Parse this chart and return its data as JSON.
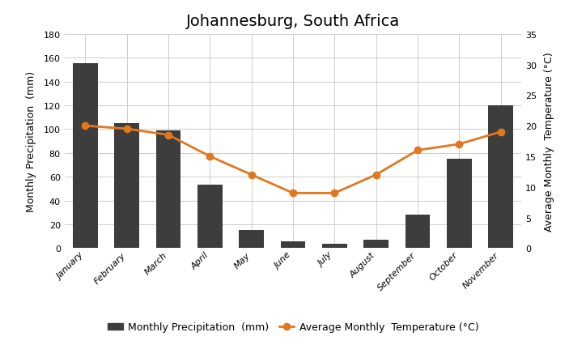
{
  "title": "Johannesburg, South Africa",
  "months": [
    "January",
    "February",
    "March",
    "April",
    "May",
    "June",
    "July",
    "August",
    "September",
    "October",
    "November"
  ],
  "precipitation": [
    155,
    105,
    99,
    53,
    15,
    6,
    4,
    7,
    28,
    75,
    120
  ],
  "temperature": [
    20,
    19.5,
    18.5,
    15,
    12,
    9,
    9,
    12,
    16,
    17,
    19
  ],
  "bar_color": "#3d3d3d",
  "line_color": "#e07820",
  "marker_color": "#e07820",
  "background_color": "#ffffff",
  "grid_color": "#cccccc",
  "ylabel_left": "Monthly Precipitation  (mm)",
  "ylabel_right": "Average Monthly  Temperature (°C)",
  "ylim_left": [
    0,
    180
  ],
  "ylim_right": [
    0,
    35
  ],
  "yticks_left": [
    0,
    20,
    40,
    60,
    80,
    100,
    120,
    140,
    160,
    180
  ],
  "yticks_right": [
    0,
    5,
    10,
    15,
    20,
    25,
    30,
    35
  ],
  "legend_bar_label": "Monthly Precipitation  (mm)",
  "legend_line_label": "Average Monthly  Temperature (°C)",
  "title_fontsize": 14,
  "axis_label_fontsize": 9,
  "tick_fontsize": 8,
  "legend_fontsize": 9,
  "fig_width": 7.24,
  "fig_height": 4.27,
  "dpi": 100
}
